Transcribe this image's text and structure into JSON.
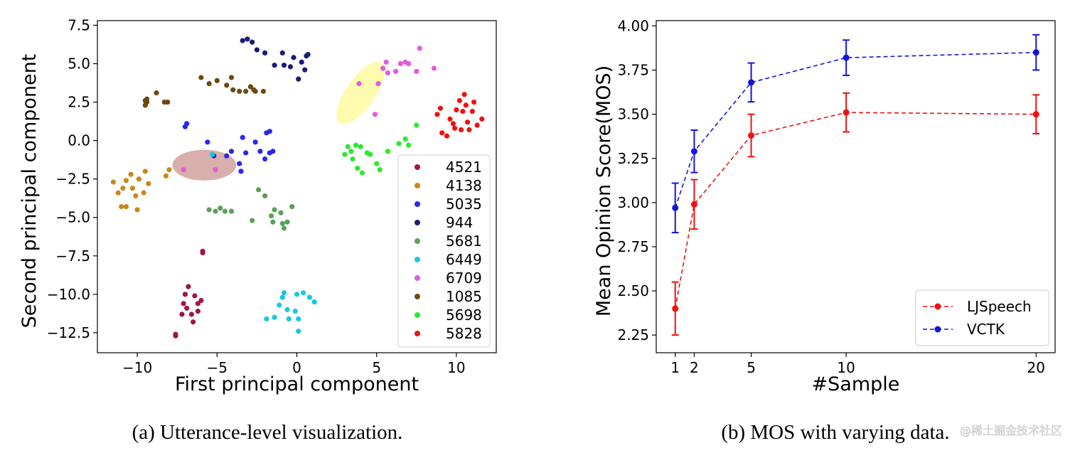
{
  "chart_data": [
    {
      "type": "scatter",
      "xlabel": "First principal component",
      "ylabel": "Second principal component",
      "xlim": [
        -12.5,
        12.5
      ],
      "ylim": [
        -13.8,
        7.8
      ],
      "xticks": [
        -10,
        -5,
        0,
        5,
        10
      ],
      "xtick_labels": [
        "−10",
        "−5",
        "0",
        "5",
        "10"
      ],
      "yticks": [
        7.5,
        5.0,
        2.5,
        0.0,
        -2.5,
        -5.0,
        -7.5,
        -10.0,
        -12.5
      ],
      "ytick_labels": [
        "7.5",
        "5.0",
        "2.5",
        "0.0",
        "−2.5",
        "−5.0",
        "−7.5",
        "−10.0",
        "−12.5"
      ],
      "grid": false,
      "legend_position": "bottom-right",
      "highlights": [
        {
          "name": "pink-ellipse",
          "color": "#c98d88",
          "center": [
            -5.8,
            -1.6
          ],
          "radius": [
            2.0,
            1.0
          ],
          "angle_deg": 0
        },
        {
          "name": "yellow-ellipse",
          "color": "#fffaa0",
          "center": [
            4.0,
            3.1
          ],
          "radius": [
            2.3,
            0.95
          ],
          "angle_deg": 55
        }
      ],
      "series": [
        {
          "name": "4521",
          "color": "#a31545",
          "points": [
            [
              -7.6,
              -12.7
            ],
            [
              -7.6,
              -12.6
            ],
            [
              -7.2,
              -11.3
            ],
            [
              -7.0,
              -10.0
            ],
            [
              -6.8,
              -9.5
            ],
            [
              -6.9,
              -10.9
            ],
            [
              -6.6,
              -11.3
            ],
            [
              -6.5,
              -11.8
            ],
            [
              -6.4,
              -10.1
            ],
            [
              -6.2,
              -10.6
            ],
            [
              -6.2,
              -11.1
            ],
            [
              -6.0,
              -10.4
            ],
            [
              -5.9,
              -7.3
            ],
            [
              -5.9,
              -7.2
            ],
            [
              -7.1,
              -10.6
            ]
          ]
        },
        {
          "name": "4138",
          "color": "#c48a1c",
          "points": [
            [
              -11.5,
              -2.7
            ],
            [
              -11.2,
              -3.4
            ],
            [
              -10.9,
              -3.1
            ],
            [
              -11.0,
              -4.3
            ],
            [
              -10.7,
              -4.3
            ],
            [
              -10.7,
              -2.6
            ],
            [
              -10.4,
              -2.2
            ],
            [
              -10.3,
              -3.1
            ],
            [
              -10.1,
              -3.6
            ],
            [
              -10.0,
              -4.5
            ],
            [
              -9.9,
              -2.5
            ],
            [
              -9.6,
              -3.4
            ],
            [
              -9.5,
              -2.0
            ],
            [
              -9.3,
              -2.8
            ],
            [
              -8.2,
              -2.3
            ],
            [
              -8.0,
              -1.9
            ]
          ]
        },
        {
          "name": "5035",
          "color": "#2828e8",
          "points": [
            [
              -5.6,
              -0.1
            ],
            [
              -5.2,
              -1.0
            ],
            [
              -4.4,
              -1.0
            ],
            [
              -4.1,
              -0.7
            ],
            [
              -3.6,
              -1.5
            ],
            [
              -3.5,
              -2.0
            ],
            [
              -3.4,
              0.2
            ],
            [
              -3.2,
              -0.8
            ],
            [
              -2.6,
              -0.1
            ],
            [
              -2.3,
              -0.7
            ],
            [
              -2.0,
              -1.2
            ],
            [
              -1.9,
              0.5
            ],
            [
              -1.7,
              0.6
            ],
            [
              -1.7,
              -0.8
            ],
            [
              -1.5,
              -0.7
            ],
            [
              -6.9,
              1.1
            ],
            [
              -7.0,
              0.9
            ]
          ]
        },
        {
          "name": "944",
          "color": "#1b1b78",
          "points": [
            [
              -3.4,
              6.5
            ],
            [
              -3.1,
              6.6
            ],
            [
              -2.8,
              6.4
            ],
            [
              -2.5,
              5.9
            ],
            [
              -2.0,
              5.7
            ],
            [
              -1.4,
              4.9
            ],
            [
              -0.9,
              5.7
            ],
            [
              -0.8,
              4.9
            ],
            [
              -0.4,
              4.8
            ],
            [
              -0.2,
              5.4
            ],
            [
              0.1,
              4.0
            ],
            [
              0.3,
              5.1
            ],
            [
              0.5,
              4.6
            ],
            [
              0.6,
              5.5
            ],
            [
              0.7,
              5.6
            ]
          ]
        },
        {
          "name": "5681",
          "color": "#5aa05a",
          "points": [
            [
              -5.1,
              -4.6
            ],
            [
              -4.8,
              -4.4
            ],
            [
              -4.5,
              -4.6
            ],
            [
              -4.1,
              -4.6
            ],
            [
              -2.8,
              -5.2
            ],
            [
              -2.4,
              -3.2
            ],
            [
              -2.0,
              -3.6
            ],
            [
              -1.6,
              -4.9
            ],
            [
              -1.5,
              -5.3
            ],
            [
              -1.4,
              -4.5
            ],
            [
              -1.0,
              -4.7
            ],
            [
              -0.9,
              -5.4
            ],
            [
              -0.8,
              -5.7
            ],
            [
              -0.6,
              -5.3
            ],
            [
              -0.3,
              -4.3
            ],
            [
              -5.5,
              -4.5
            ]
          ]
        },
        {
          "name": "6449",
          "color": "#17c9e0",
          "points": [
            [
              -5.3,
              -0.9
            ],
            [
              -1.9,
              -11.6
            ],
            [
              -1.4,
              -11.5
            ],
            [
              -1.1,
              -10.7
            ],
            [
              -0.9,
              -10.2
            ],
            [
              -0.8,
              -9.9
            ],
            [
              -0.6,
              -11.0
            ],
            [
              -0.5,
              -11.6
            ],
            [
              -0.1,
              -11.1
            ],
            [
              0.0,
              -10.0
            ],
            [
              0.1,
              -11.6
            ],
            [
              0.1,
              -12.4
            ],
            [
              0.4,
              -9.9
            ],
            [
              0.8,
              -10.2
            ],
            [
              1.1,
              -10.5
            ]
          ]
        },
        {
          "name": "6709",
          "color": "#e05ce0",
          "points": [
            [
              -7.1,
              -1.9
            ],
            [
              -5.1,
              -1.9
            ],
            [
              3.9,
              3.7
            ],
            [
              5.1,
              3.7
            ],
            [
              4.9,
              1.7
            ],
            [
              5.4,
              4.7
            ],
            [
              5.6,
              5.1
            ],
            [
              5.7,
              4.4
            ],
            [
              6.2,
              4.5
            ],
            [
              6.5,
              5.0
            ],
            [
              6.8,
              5.1
            ],
            [
              7.0,
              5.0
            ],
            [
              7.5,
              4.5
            ],
            [
              7.7,
              6.0
            ],
            [
              8.6,
              4.7
            ]
          ]
        },
        {
          "name": "1085",
          "color": "#6e4a10",
          "points": [
            [
              -9.5,
              2.6
            ],
            [
              -9.5,
              2.3
            ],
            [
              -9.4,
              2.7
            ],
            [
              -9.4,
              2.5
            ],
            [
              -8.8,
              3.1
            ],
            [
              -8.3,
              2.5
            ],
            [
              -8.1,
              2.5
            ],
            [
              -6.0,
              4.1
            ],
            [
              -5.5,
              3.7
            ],
            [
              -5.0,
              3.9
            ],
            [
              -4.4,
              3.6
            ],
            [
              -4.1,
              4.1
            ],
            [
              -4.0,
              3.3
            ],
            [
              -3.6,
              3.2
            ],
            [
              -3.2,
              3.2
            ],
            [
              -2.9,
              3.5
            ],
            [
              -2.7,
              3.3
            ],
            [
              -2.6,
              3.2
            ],
            [
              -2.1,
              3.2
            ]
          ]
        },
        {
          "name": "5698",
          "color": "#2ee82e",
          "points": [
            [
              3.0,
              -0.9
            ],
            [
              3.2,
              -0.4
            ],
            [
              3.4,
              -0.7
            ],
            [
              3.5,
              -1.2
            ],
            [
              3.7,
              -0.3
            ],
            [
              3.8,
              -1.8
            ],
            [
              4.0,
              -0.4
            ],
            [
              4.1,
              -2.1
            ],
            [
              4.4,
              -0.8
            ],
            [
              4.6,
              -0.9
            ],
            [
              5.0,
              -1.5
            ],
            [
              5.2,
              -1.9
            ],
            [
              5.7,
              -0.7
            ],
            [
              6.4,
              -0.2
            ],
            [
              6.8,
              0.1
            ],
            [
              7.0,
              -0.3
            ],
            [
              7.5,
              1.0
            ]
          ]
        },
        {
          "name": "5828",
          "color": "#ee1111",
          "points": [
            [
              8.8,
              1.7
            ],
            [
              9.1,
              0.5
            ],
            [
              9.4,
              0.3
            ],
            [
              9.6,
              1.4
            ],
            [
              9.8,
              1.1
            ],
            [
              9.9,
              0.8
            ],
            [
              10.0,
              2.0
            ],
            [
              10.2,
              2.6
            ],
            [
              10.3,
              0.7
            ],
            [
              10.4,
              1.9
            ],
            [
              10.5,
              3.0
            ],
            [
              10.6,
              2.3
            ],
            [
              10.7,
              1.2
            ],
            [
              10.8,
              0.7
            ],
            [
              11.0,
              1.9
            ],
            [
              11.1,
              2.5
            ],
            [
              11.3,
              1.0
            ],
            [
              11.6,
              1.4
            ],
            [
              9.0,
              2.1
            ]
          ]
        }
      ]
    },
    {
      "type": "line",
      "xlabel": "#Sample",
      "ylabel": "Mean Opinion Score(MOS)",
      "x": [
        1,
        2,
        5,
        10,
        20
      ],
      "xtick_labels": [
        "1",
        "2",
        "5",
        "10",
        "20"
      ],
      "xlim": [
        0.0,
        21.0
      ],
      "ylim": [
        2.15,
        4.03
      ],
      "yticks": [
        2.25,
        2.5,
        2.75,
        3.0,
        3.25,
        3.5,
        3.75,
        4.0
      ],
      "ytick_labels": [
        "2.25",
        "2.50",
        "2.75",
        "3.00",
        "3.25",
        "3.50",
        "3.75",
        "4.00"
      ],
      "grid": false,
      "legend_position": "bottom-right",
      "series": [
        {
          "name": "LJSpeech",
          "color": "#ee1111",
          "values": [
            2.4,
            2.99,
            3.38,
            3.51,
            3.5
          ],
          "errors": [
            0.15,
            0.14,
            0.12,
            0.11,
            0.11
          ]
        },
        {
          "name": "VCTK",
          "color": "#1515dd",
          "values": [
            2.97,
            3.29,
            3.68,
            3.82,
            3.85
          ],
          "errors": [
            0.14,
            0.12,
            0.11,
            0.1,
            0.1
          ]
        }
      ]
    }
  ],
  "captions": {
    "left": "(a) Utterance-level visualization.",
    "right": "(b) MOS with varying data."
  },
  "watermark": "@稀土掘金技术社区"
}
